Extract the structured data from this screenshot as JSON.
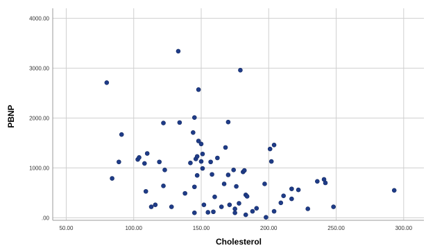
{
  "chart_data": {
    "type": "scatter",
    "xlabel": "Cholesterol",
    "ylabel": "PBNP",
    "xlim": [
      40,
      315
    ],
    "ylim": [
      -50,
      4200
    ],
    "x_ticks": [
      50,
      100,
      150,
      200,
      250,
      300
    ],
    "y_ticks": [
      0,
      1000,
      2000,
      3000,
      4000
    ],
    "x_tick_labels": [
      "50.00",
      "100.00",
      "150.00",
      "200.00",
      "250.00",
      "300.00"
    ],
    "y_tick_labels": [
      ".00",
      "1000.00",
      "2000.00",
      "3000.00",
      "4000.00"
    ],
    "grid": true,
    "marker_color": "#1f3c88",
    "points": [
      {
        "x": 80,
        "y": 2710
      },
      {
        "x": 84,
        "y": 790
      },
      {
        "x": 89,
        "y": 1120
      },
      {
        "x": 91,
        "y": 1670
      },
      {
        "x": 103,
        "y": 1170
      },
      {
        "x": 104,
        "y": 1210
      },
      {
        "x": 108,
        "y": 1090
      },
      {
        "x": 109,
        "y": 530
      },
      {
        "x": 110,
        "y": 1290
      },
      {
        "x": 113,
        "y": 220
      },
      {
        "x": 116,
        "y": 260
      },
      {
        "x": 119,
        "y": 1120
      },
      {
        "x": 122,
        "y": 640
      },
      {
        "x": 122,
        "y": 1900
      },
      {
        "x": 123,
        "y": 960
      },
      {
        "x": 128,
        "y": 220
      },
      {
        "x": 133,
        "y": 3340
      },
      {
        "x": 134,
        "y": 1910
      },
      {
        "x": 138,
        "y": 490
      },
      {
        "x": 142,
        "y": 1100
      },
      {
        "x": 144,
        "y": 1710
      },
      {
        "x": 145,
        "y": 2010
      },
      {
        "x": 145,
        "y": 620
      },
      {
        "x": 145,
        "y": 100
      },
      {
        "x": 146,
        "y": 1180
      },
      {
        "x": 147,
        "y": 850
      },
      {
        "x": 147,
        "y": 1230
      },
      {
        "x": 148,
        "y": 2570
      },
      {
        "x": 148,
        "y": 1540
      },
      {
        "x": 150,
        "y": 1480
      },
      {
        "x": 150,
        "y": 1130
      },
      {
        "x": 151,
        "y": 1280
      },
      {
        "x": 151,
        "y": 990
      },
      {
        "x": 152,
        "y": 260
      },
      {
        "x": 155,
        "y": 110
      },
      {
        "x": 157,
        "y": 1120
      },
      {
        "x": 158,
        "y": 870
      },
      {
        "x": 159,
        "y": 120
      },
      {
        "x": 160,
        "y": 420
      },
      {
        "x": 162,
        "y": 1200
      },
      {
        "x": 165,
        "y": 220
      },
      {
        "x": 167,
        "y": 680
      },
      {
        "x": 168,
        "y": 1410
      },
      {
        "x": 170,
        "y": 1920
      },
      {
        "x": 170,
        "y": 860
      },
      {
        "x": 171,
        "y": 260
      },
      {
        "x": 174,
        "y": 960
      },
      {
        "x": 175,
        "y": 180
      },
      {
        "x": 175,
        "y": 100
      },
      {
        "x": 176,
        "y": 630
      },
      {
        "x": 178,
        "y": 290
      },
      {
        "x": 179,
        "y": 2960
      },
      {
        "x": 181,
        "y": 920
      },
      {
        "x": 182,
        "y": 950
      },
      {
        "x": 183,
        "y": 460
      },
      {
        "x": 183,
        "y": 60
      },
      {
        "x": 184,
        "y": 430
      },
      {
        "x": 188,
        "y": 130
      },
      {
        "x": 191,
        "y": 190
      },
      {
        "x": 197,
        "y": 680
      },
      {
        "x": 198,
        "y": 10
      },
      {
        "x": 201,
        "y": 1380
      },
      {
        "x": 202,
        "y": 1130
      },
      {
        "x": 204,
        "y": 1460
      },
      {
        "x": 204,
        "y": 130
      },
      {
        "x": 209,
        "y": 300
      },
      {
        "x": 211,
        "y": 440
      },
      {
        "x": 217,
        "y": 580
      },
      {
        "x": 217,
        "y": 380
      },
      {
        "x": 222,
        "y": 560
      },
      {
        "x": 229,
        "y": 180
      },
      {
        "x": 236,
        "y": 730
      },
      {
        "x": 241,
        "y": 770
      },
      {
        "x": 242,
        "y": 700
      },
      {
        "x": 248,
        "y": 220
      },
      {
        "x": 293,
        "y": 550
      }
    ]
  }
}
